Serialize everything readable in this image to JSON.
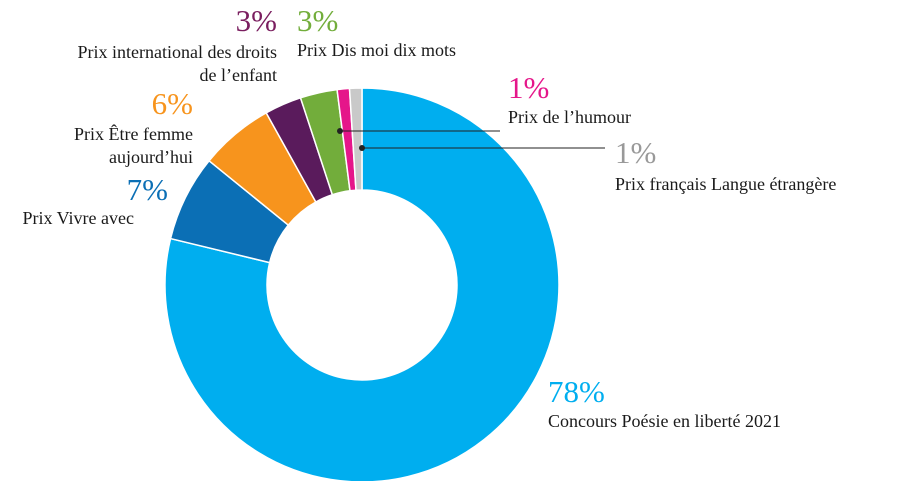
{
  "chart_data": {
    "type": "donut",
    "categories": [
      [
        "Concours Poésie en liberté 2021"
      ],
      [
        "Prix Vivre avec"
      ],
      [
        "Prix Être femme",
        "aujourd’hui"
      ],
      [
        "Prix international des droits",
        "de l’enfant"
      ],
      [
        "Prix Dis moi dix mots"
      ],
      [
        "Prix de l’humour"
      ],
      [
        "Prix français Langue étrangère"
      ]
    ],
    "values": [
      78,
      7,
      6,
      3,
      3,
      1,
      1
    ],
    "value_labels": [
      "78%",
      "7%",
      "6%",
      "3%",
      "3%",
      "1%",
      "1%"
    ],
    "colors": [
      "#00aeef",
      "#0b6fb5",
      "#f7941d",
      "#5a1b5c",
      "#72ad3b",
      "#e5168a",
      "#c9c9c9"
    ],
    "label_colors": [
      "#00aeef",
      "#0b6fb5",
      "#f7941d",
      "#7a1e5f",
      "#72ad3b",
      "#e5168a",
      "#999999"
    ]
  }
}
